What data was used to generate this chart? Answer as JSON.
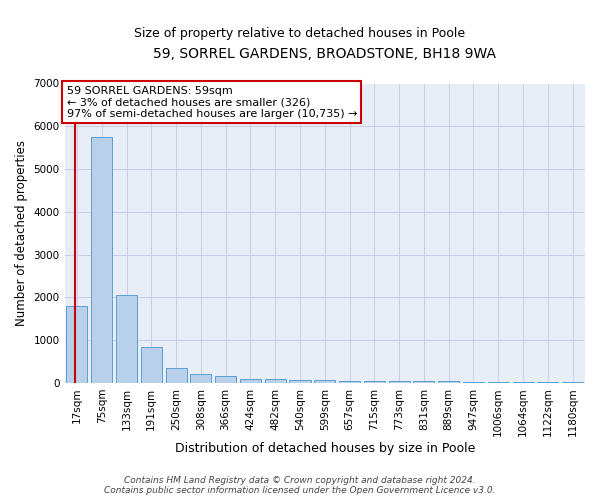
{
  "title1": "59, SORREL GARDENS, BROADSTONE, BH18 9WA",
  "title2": "Size of property relative to detached houses in Poole",
  "xlabel": "Distribution of detached houses by size in Poole",
  "ylabel": "Number of detached properties",
  "categories": [
    "17sqm",
    "75sqm",
    "133sqm",
    "191sqm",
    "250sqm",
    "308sqm",
    "366sqm",
    "424sqm",
    "482sqm",
    "540sqm",
    "599sqm",
    "657sqm",
    "715sqm",
    "773sqm",
    "831sqm",
    "889sqm",
    "947sqm",
    "1006sqm",
    "1064sqm",
    "1122sqm",
    "1180sqm"
  ],
  "values": [
    1800,
    5750,
    2050,
    830,
    340,
    200,
    160,
    100,
    90,
    60,
    55,
    50,
    50,
    45,
    40,
    35,
    30,
    25,
    20,
    15,
    10
  ],
  "bar_color": "#b8d0ea",
  "bar_edge_color": "#5a9fd4",
  "grid_color": "#c8cfe8",
  "bg_color": "#e8eef8",
  "vline_color": "#cc0000",
  "annotation_line1": "59 SORREL GARDENS: 59sqm",
  "annotation_line2": "← 3% of detached houses are smaller (326)",
  "annotation_line3": "97% of semi-detached houses are larger (10,735) →",
  "annotation_box_color": "#ffffff",
  "annotation_box_edge": "#cc0000",
  "ylim": [
    0,
    7000
  ],
  "yticks": [
    0,
    1000,
    2000,
    3000,
    4000,
    5000,
    6000,
    7000
  ],
  "footnote": "Contains HM Land Registry data © Crown copyright and database right 2024.\nContains public sector information licensed under the Open Government Licence v3.0.",
  "title1_fontsize": 10,
  "title2_fontsize": 9,
  "xlabel_fontsize": 9,
  "ylabel_fontsize": 8.5,
  "tick_fontsize": 7.5,
  "annotation_fontsize": 8,
  "footnote_fontsize": 6.5
}
